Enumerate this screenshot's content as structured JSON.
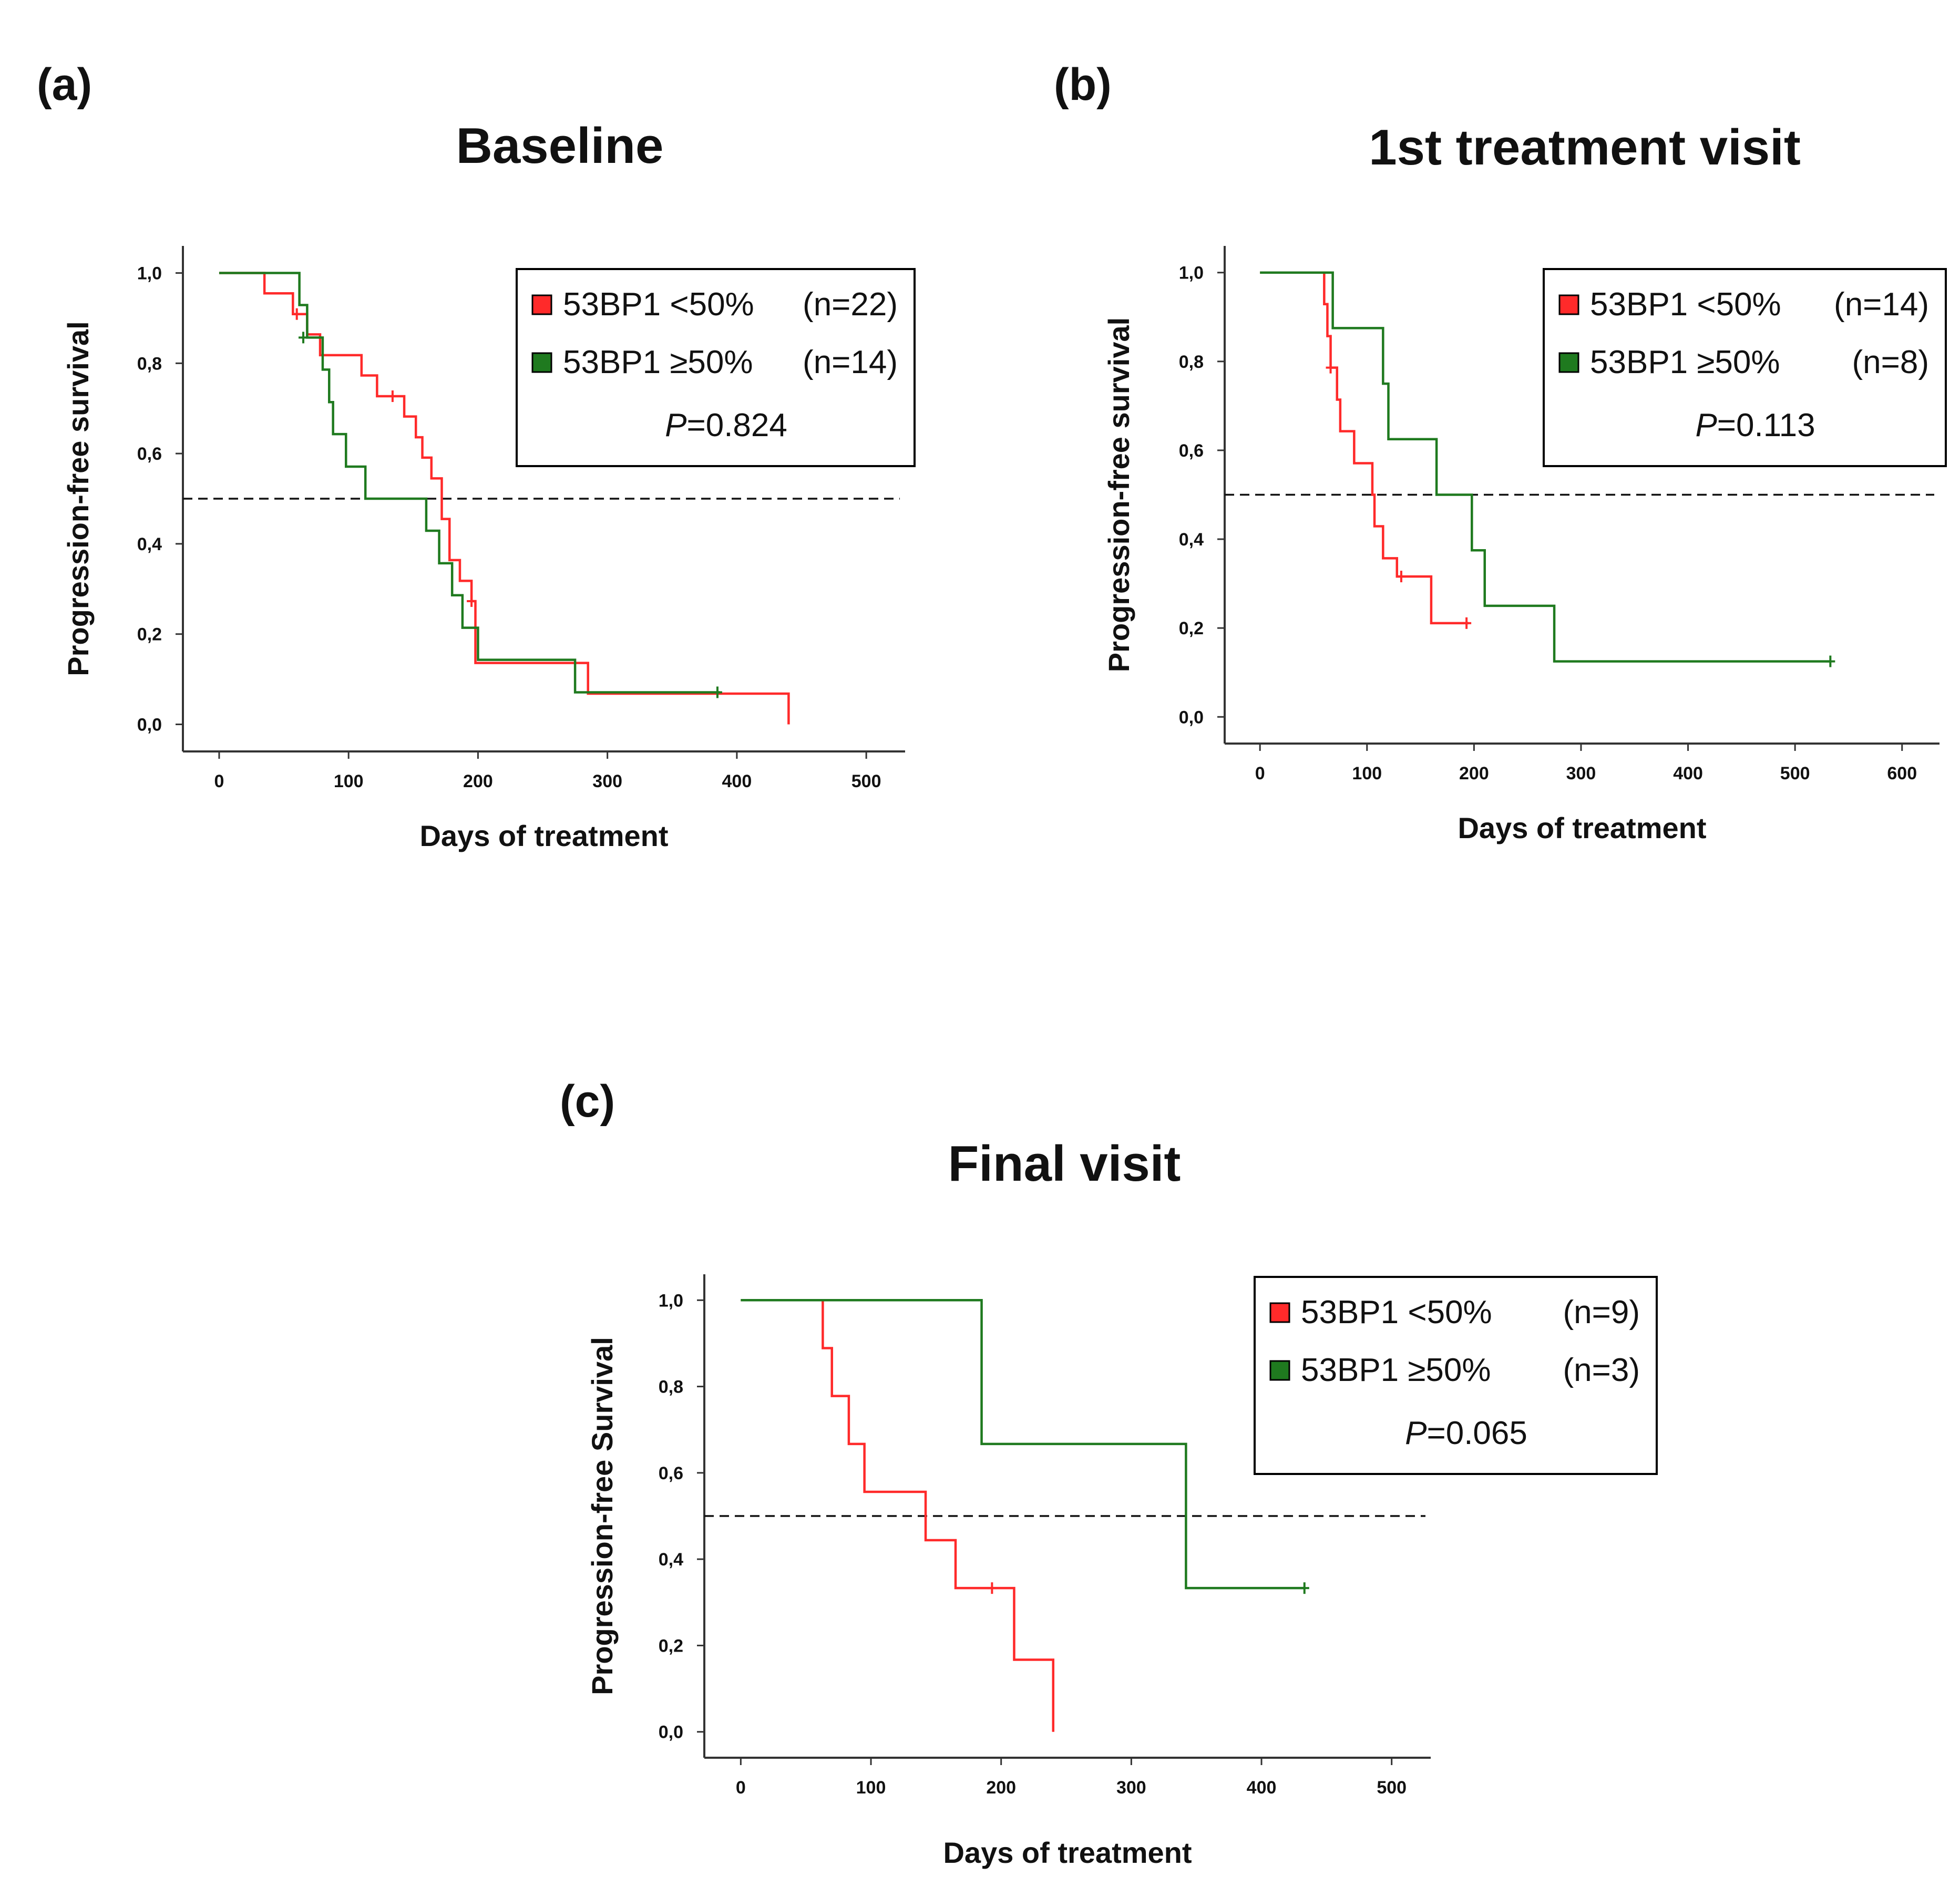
{
  "colors": {
    "red": "#ff2a2a",
    "green": "#1f7a1f",
    "axis": "#333333",
    "ref_line": "#111111"
  },
  "chart_data": [
    {
      "type": "line",
      "subtype": "kaplan-meier",
      "panel": "(a)",
      "title": "Baseline",
      "xlabel": "Days of treatment",
      "ylabel": "Progression-free survival",
      "xlim": [
        -28,
        530
      ],
      "ylim": [
        -0.06,
        1.06
      ],
      "xticks": [
        0,
        100,
        200,
        300,
        400,
        500
      ],
      "xtick_labels": [
        "0",
        "100",
        "200",
        "300",
        "400",
        "500"
      ],
      "yticks": [
        0,
        0.2,
        0.4,
        0.6,
        0.8,
        1.0
      ],
      "ytick_labels": [
        "0,0",
        "0,2",
        "0,4",
        "0,6",
        "0,8",
        "1,0"
      ],
      "reference_line": 0.5,
      "legend": {
        "position": "top-right",
        "entries": [
          {
            "label": "53BP1 <50%",
            "n": "(n=22)",
            "color": "#ff2a2a"
          },
          {
            "label": "53BP1 ≥50%",
            "n": "(n=14)",
            "color": "#1f7a1f"
          }
        ],
        "p_label": "P",
        "p_value": "=0.824"
      },
      "series": [
        {
          "name": "53BP1 <50%",
          "color": "#ff2a2a",
          "steps": [
            [
              0,
              1.0
            ],
            [
              35,
              0.955
            ],
            [
              57,
              0.909
            ],
            [
              68,
              0.864
            ],
            [
              78,
              0.818
            ],
            [
              110,
              0.773
            ],
            [
              122,
              0.727
            ],
            [
              143,
              0.682
            ],
            [
              152,
              0.636
            ],
            [
              157,
              0.591
            ],
            [
              164,
              0.545
            ],
            [
              172,
              0.455
            ],
            [
              178,
              0.364
            ],
            [
              186,
              0.318
            ],
            [
              195,
              0.273
            ],
            [
              198,
              0.136
            ],
            [
              285,
              0.068
            ],
            [
              440,
              0.068
            ],
            [
              440,
              0.0
            ]
          ],
          "censored": [
            [
              60,
              0.909
            ],
            [
              134,
              0.727
            ],
            [
              195,
              0.273
            ]
          ]
        },
        {
          "name": "53BP1 ≥50%",
          "color": "#1f7a1f",
          "steps": [
            [
              0,
              1.0
            ],
            [
              62,
              0.929
            ],
            [
              68,
              0.857
            ],
            [
              80,
              0.786
            ],
            [
              85,
              0.714
            ],
            [
              88,
              0.643
            ],
            [
              98,
              0.571
            ],
            [
              113,
              0.5
            ],
            [
              120,
              0.5
            ],
            [
              160,
              0.429
            ],
            [
              170,
              0.357
            ],
            [
              180,
              0.286
            ],
            [
              188,
              0.214
            ],
            [
              200,
              0.143
            ],
            [
              275,
              0.071
            ],
            [
              387,
              0.071
            ]
          ],
          "censored": [
            [
              65,
              0.857
            ],
            [
              385,
              0.071
            ]
          ]
        }
      ]
    },
    {
      "type": "line",
      "subtype": "kaplan-meier",
      "panel": "(b)",
      "title": "1st treatment visit",
      "xlabel": "Days of treatment",
      "ylabel": "Progression-free survival",
      "xlim": [
        -33,
        635
      ],
      "ylim": [
        -0.06,
        1.06
      ],
      "xticks": [
        0,
        100,
        200,
        300,
        400,
        500,
        600
      ],
      "xtick_labels": [
        "0",
        "100",
        "200",
        "300",
        "400",
        "500",
        "600"
      ],
      "yticks": [
        0,
        0.2,
        0.4,
        0.6,
        0.8,
        1.0
      ],
      "ytick_labels": [
        "0,0",
        "0,2",
        "0,4",
        "0,6",
        "0,8",
        "1,0"
      ],
      "reference_line": 0.5,
      "legend": {
        "position": "top-right",
        "entries": [
          {
            "label": "53BP1 <50%",
            "n": "(n=14)",
            "color": "#ff2a2a"
          },
          {
            "label": "53BP1 ≥50%",
            "n": "(n=8)",
            "color": "#1f7a1f"
          }
        ],
        "p_label": "P",
        "p_value": "=0.113"
      },
      "series": [
        {
          "name": "53BP1 <50%",
          "color": "#ff2a2a",
          "steps": [
            [
              0,
              1.0
            ],
            [
              60,
              0.929
            ],
            [
              63,
              0.857
            ],
            [
              66,
              0.786
            ],
            [
              72,
              0.714
            ],
            [
              75,
              0.643
            ],
            [
              88,
              0.571
            ],
            [
              105,
              0.5
            ],
            [
              107,
              0.429
            ],
            [
              115,
              0.357
            ],
            [
              128,
              0.316
            ],
            [
              160,
              0.211
            ],
            [
              195,
              0.211
            ]
          ],
          "censored": [
            [
              66,
              0.786
            ],
            [
              132,
              0.316
            ],
            [
              193,
              0.211
            ]
          ]
        },
        {
          "name": "53BP1 ≥50%",
          "color": "#1f7a1f",
          "steps": [
            [
              0,
              1.0
            ],
            [
              68,
              0.875
            ],
            [
              115,
              0.75
            ],
            [
              120,
              0.625
            ],
            [
              165,
              0.5
            ],
            [
              198,
              0.375
            ],
            [
              210,
              0.25
            ],
            [
              275,
              0.125
            ],
            [
              533,
              0.125
            ]
          ],
          "censored": [
            [
              533,
              0.125
            ]
          ]
        }
      ]
    },
    {
      "type": "line",
      "subtype": "kaplan-meier",
      "panel": "(c)",
      "title": "Final visit",
      "xlabel": "Days of treatment",
      "ylabel": "Progression-free Survival",
      "xlim": [
        -28,
        530
      ],
      "ylim": [
        -0.06,
        1.06
      ],
      "xticks": [
        0,
        100,
        200,
        300,
        400,
        500
      ],
      "xtick_labels": [
        "0",
        "100",
        "200",
        "300",
        "400",
        "500"
      ],
      "yticks": [
        0,
        0.2,
        0.4,
        0.6,
        0.8,
        1.0
      ],
      "ytick_labels": [
        "0,0",
        "0,2",
        "0,4",
        "0,6",
        "0,8",
        "1,0"
      ],
      "reference_line": 0.5,
      "legend": {
        "position": "top-right",
        "entries": [
          {
            "label": "53BP1 <50%",
            "n": "(n=9)",
            "color": "#ff2a2a"
          },
          {
            "label": "53BP1 ≥50%",
            "n": "(n=3)",
            "color": "#1f7a1f"
          }
        ],
        "p_label": "P",
        "p_value": "=0.065"
      },
      "series": [
        {
          "name": "53BP1 <50%",
          "color": "#ff2a2a",
          "steps": [
            [
              0,
              1.0
            ],
            [
              63,
              0.889
            ],
            [
              70,
              0.778
            ],
            [
              83,
              0.667
            ],
            [
              95,
              0.556
            ],
            [
              142,
              0.444
            ],
            [
              165,
              0.333
            ],
            [
              210,
              0.167
            ],
            [
              240,
              0.0
            ]
          ],
          "censored": [
            [
              193,
              0.333
            ]
          ]
        },
        {
          "name": "53BP1 ≥50%",
          "color": "#1f7a1f",
          "steps": [
            [
              0,
              1.0
            ],
            [
              185,
              0.667
            ],
            [
              342,
              0.333
            ],
            [
              433,
              0.333
            ]
          ],
          "censored": [
            [
              433,
              0.333
            ]
          ]
        }
      ]
    }
  ]
}
